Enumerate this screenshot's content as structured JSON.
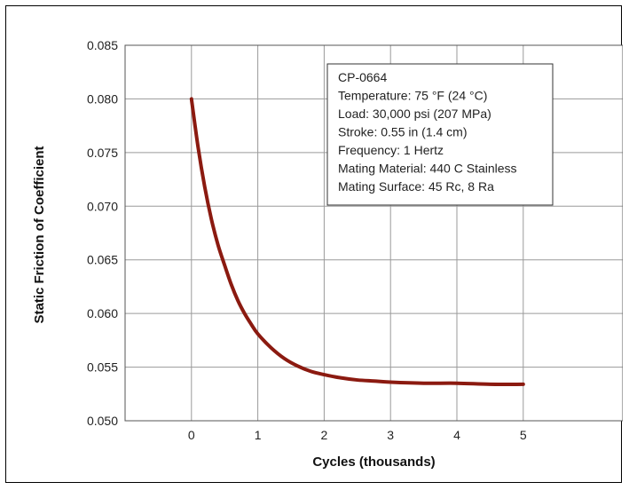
{
  "chart_data": {
    "type": "line",
    "title": "",
    "xlabel": "Cycles (thousands)",
    "ylabel": "Static Friction of Coefficient",
    "xlim": [
      -1,
      6.5
    ],
    "ylim": [
      0.05,
      0.085
    ],
    "x_ticks": [
      0,
      1,
      2,
      3,
      4,
      5
    ],
    "y_ticks": [
      0.05,
      0.055,
      0.06,
      0.065,
      0.07,
      0.075,
      0.08,
      0.085
    ],
    "x_tick_labels": [
      "0",
      "1",
      "2",
      "3",
      "4",
      "5"
    ],
    "y_tick_labels": [
      "0.050",
      "0.055",
      "0.060",
      "0.065",
      "0.070",
      "0.075",
      "0.080",
      "0.085"
    ],
    "grid": true,
    "series": [
      {
        "color": "#8b1a10",
        "x": [
          0,
          0.1,
          0.2,
          0.3,
          0.4,
          0.5,
          0.6,
          0.7,
          0.8,
          0.9,
          1.0,
          1.2,
          1.4,
          1.6,
          1.8,
          2.0,
          2.25,
          2.5,
          2.75,
          3.0,
          3.5,
          4.0,
          4.5,
          5.0
        ],
        "y": [
          0.08,
          0.0755,
          0.0718,
          0.0688,
          0.0664,
          0.0645,
          0.0627,
          0.0612,
          0.06,
          0.059,
          0.0581,
          0.0568,
          0.0558,
          0.0551,
          0.0546,
          0.0543,
          0.054,
          0.0538,
          0.0537,
          0.0536,
          0.0535,
          0.0535,
          0.0534,
          0.0534
        ]
      }
    ],
    "legend_position": "top-right",
    "annotation_lines": [
      "CP-0664",
      "Temperature: 75 °F (24 °C)",
      "Load: 30,000 psi (207 MPa)",
      "Stroke: 0.55 in (1.4 cm)",
      "Frequency: 1 Hertz",
      "Mating Material: 440 C Stainless",
      "Mating Surface: 45 Rc, 8 Ra"
    ]
  }
}
